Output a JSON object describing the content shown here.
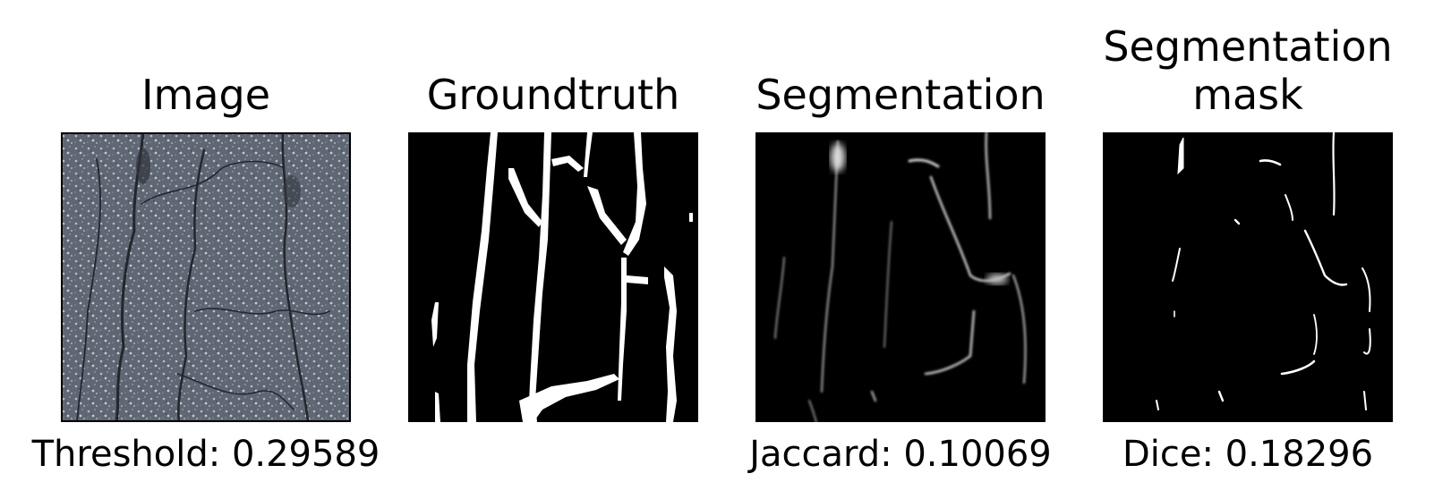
{
  "panels": [
    {
      "title": "Image",
      "caption": "Threshold: 0.29589"
    },
    {
      "title": "Groundtruth",
      "caption": ""
    },
    {
      "title": "Segmentation",
      "caption": "Jaccard: 0.10069"
    },
    {
      "title_line1": "Segmentation",
      "title_line2": "mask",
      "caption": "Dice: 0.18296"
    }
  ],
  "colors": {
    "background": "#ffffff",
    "mask": "#000000",
    "foreground": "#ffffff",
    "asphalt": "#5f6775"
  }
}
